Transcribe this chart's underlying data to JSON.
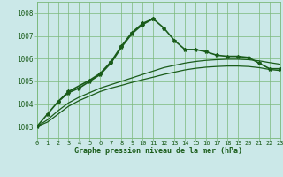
{
  "title": "Graphe pression niveau de la mer (hPa)",
  "bg_color": "#cbe8e8",
  "grid_color": "#7ab87a",
  "line_color": "#1a5c1a",
  "xlim": [
    0,
    23
  ],
  "ylim": [
    1002.5,
    1008.5
  ],
  "yticks": [
    1003,
    1004,
    1005,
    1006,
    1007,
    1008
  ],
  "xticks": [
    0,
    1,
    2,
    3,
    4,
    5,
    6,
    7,
    8,
    9,
    10,
    11,
    12,
    13,
    14,
    15,
    16,
    17,
    18,
    19,
    20,
    21,
    22,
    23
  ],
  "series": [
    {
      "x": [
        0,
        1,
        2,
        3,
        4,
        5,
        6,
        7,
        8,
        9,
        10,
        11,
        12,
        13,
        14,
        15,
        16,
        17,
        18,
        19,
        20,
        21,
        22,
        23
      ],
      "y": [
        1003.0,
        1003.55,
        1004.1,
        1004.5,
        1004.7,
        1005.0,
        1005.3,
        1005.8,
        1006.5,
        1007.1,
        1007.5,
        1007.75,
        1007.35,
        1006.8,
        1006.4,
        1006.4,
        1006.3,
        1006.15,
        1006.1,
        1006.1,
        1006.05,
        1005.8,
        1005.55,
        1005.55
      ],
      "marker": true,
      "lw": 1.2
    },
    {
      "x": [
        2,
        3,
        5,
        6,
        7,
        8,
        9,
        10,
        11
      ],
      "y": [
        1004.1,
        1004.55,
        1005.05,
        1005.35,
        1005.85,
        1006.55,
        1007.15,
        1007.55,
        1007.75
      ],
      "marker": true,
      "lw": 1.2
    },
    {
      "x": [
        0,
        1,
        2,
        3,
        4,
        5,
        6,
        7,
        8,
        9,
        10,
        11,
        12,
        13,
        14,
        15,
        16,
        17,
        18,
        19,
        20,
        21,
        22,
        23
      ],
      "y": [
        1003.0,
        1003.3,
        1003.7,
        1004.05,
        1004.3,
        1004.5,
        1004.7,
        1004.85,
        1005.0,
        1005.15,
        1005.3,
        1005.45,
        1005.6,
        1005.7,
        1005.8,
        1005.87,
        1005.92,
        1005.95,
        1005.97,
        1005.97,
        1005.95,
        1005.9,
        1005.82,
        1005.75
      ],
      "marker": false,
      "lw": 0.9
    },
    {
      "x": [
        0,
        1,
        2,
        3,
        4,
        5,
        6,
        7,
        8,
        9,
        10,
        11,
        12,
        13,
        14,
        15,
        16,
        17,
        18,
        19,
        20,
        21,
        22,
        23
      ],
      "y": [
        1003.0,
        1003.2,
        1003.55,
        1003.9,
        1004.15,
        1004.35,
        1004.55,
        1004.7,
        1004.82,
        1004.95,
        1005.07,
        1005.18,
        1005.3,
        1005.4,
        1005.5,
        1005.57,
        1005.62,
        1005.65,
        1005.67,
        1005.67,
        1005.65,
        1005.6,
        1005.52,
        1005.47
      ],
      "marker": false,
      "lw": 0.9
    }
  ]
}
